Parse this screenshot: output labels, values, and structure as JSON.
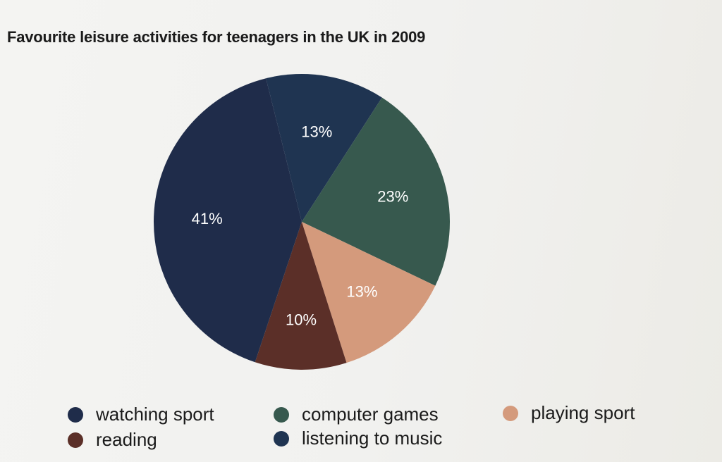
{
  "chart_data": {
    "type": "pie",
    "title": "Favourite leisure activities for teenagers in the UK in 2009",
    "slices": [
      {
        "name": "watching sport",
        "value": 41,
        "label": "41%",
        "color": "#1f2c4a"
      },
      {
        "name": "listening to music",
        "value": 13,
        "label": "13%",
        "color": "#1f3451"
      },
      {
        "name": "computer games",
        "value": 23,
        "label": "23%",
        "color": "#37594e"
      },
      {
        "name": "playing sport",
        "value": 13,
        "label": "13%",
        "color": "#d49a7c"
      },
      {
        "name": "reading",
        "value": 10,
        "label": "10%",
        "color": "#5b2f28"
      }
    ],
    "legend": [
      {
        "name": "watching sport",
        "color": "#1f2c4a"
      },
      {
        "name": "computer games",
        "color": "#37594e"
      },
      {
        "name": "playing sport",
        "color": "#d49a7c"
      },
      {
        "name": "reading",
        "color": "#5b2f28"
      },
      {
        "name": "listening to music",
        "color": "#1f3451"
      }
    ],
    "legend_placement": "bottom"
  }
}
